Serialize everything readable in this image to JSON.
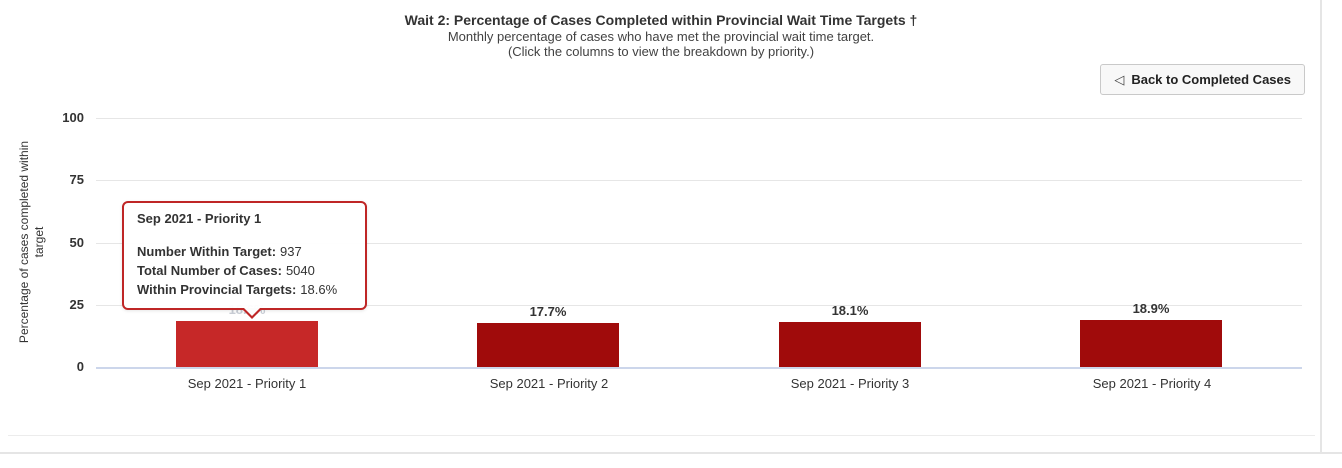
{
  "header": {
    "title": "Wait 2: Percentage of Cases Completed within Provincial Wait Time Targets †",
    "subtitle1": "Monthly percentage of cases who have met the provincial wait time target.",
    "subtitle2": "(Click the columns to view the breakdown by priority.)"
  },
  "toolbar": {
    "back_icon": "◁",
    "back_label": "Back to Completed Cases"
  },
  "y_axis": {
    "title_line1": "Percentage of cases completed within",
    "title_line2": "target"
  },
  "colors": {
    "bar": "#a00b0b",
    "bar_highlight": "#c62828",
    "tooltip_border": "#bf2626",
    "grid_line": "#e6e6e6",
    "axis_line": "#ccd6eb",
    "faded_value_label": "#c9ced6"
  },
  "chart_data": {
    "type": "bar",
    "title": "Wait 2: Percentage of Cases Completed within Provincial Wait Time Targets †",
    "subtitle": [
      "Monthly percentage of cases who have met the provincial wait time target.",
      "(Click the columns to view the breakdown by priority.)"
    ],
    "categories": [
      "Sep 2021 - Priority 1",
      "Sep 2021 - Priority 2",
      "Sep 2021 - Priority 3",
      "Sep 2021 - Priority 4"
    ],
    "values": [
      18.6,
      17.7,
      18.1,
      18.9
    ],
    "value_labels": [
      "18.6%",
      "17.7%",
      "18.1%",
      "18.9%"
    ],
    "xlabel": "",
    "ylabel": "Percentage of cases completed within target",
    "ylim": [
      0,
      100
    ],
    "yticks": [
      0,
      25,
      50,
      75,
      100
    ],
    "grid": true,
    "legend": false,
    "highlighted_index": 0
  },
  "tooltip": {
    "title": "Sep 2021 - Priority 1",
    "rows": [
      {
        "label": "Number Within Target:",
        "value": "937"
      },
      {
        "label": "Total Number of Cases:",
        "value": "5040"
      },
      {
        "label": "Within Provincial Targets:",
        "value": "18.6%"
      }
    ]
  }
}
